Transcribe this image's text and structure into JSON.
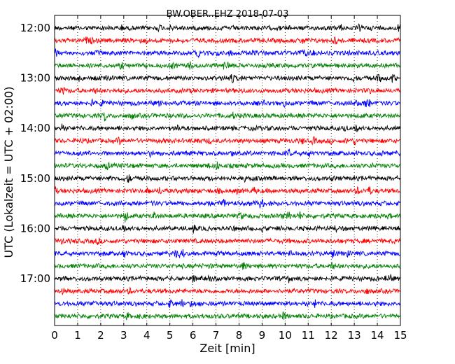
{
  "chart_data": {
    "type": "line",
    "title": "BW.OBER..EHZ 2018-07-03",
    "xlabel": "Zeit  [min]",
    "ylabel": "UTC (Lokalzeit = UTC + 02:00)",
    "xlim": [
      0,
      15
    ],
    "x_ticks": [
      "0",
      "1",
      "2",
      "3",
      "4",
      "5",
      "6",
      "7",
      "8",
      "9",
      "10",
      "11",
      "12",
      "13",
      "14",
      "15"
    ],
    "y_tick_labels": [
      "12:00",
      "13:00",
      "14:00",
      "15:00",
      "16:00",
      "17:00"
    ],
    "grid": "vertical dotted lines at each minute",
    "trace_start_times": [
      "12:00",
      "12:15",
      "12:30",
      "12:45",
      "13:00",
      "13:15",
      "13:30",
      "13:45",
      "14:00",
      "14:15",
      "14:30",
      "14:45",
      "15:00",
      "15:15",
      "15:30",
      "15:45",
      "16:00",
      "16:15",
      "16:30",
      "16:45",
      "17:00",
      "17:15",
      "17:30",
      "17:45"
    ],
    "trace_colors": [
      "#000000",
      "#ff0000",
      "#0000ff",
      "#008000"
    ]
  }
}
